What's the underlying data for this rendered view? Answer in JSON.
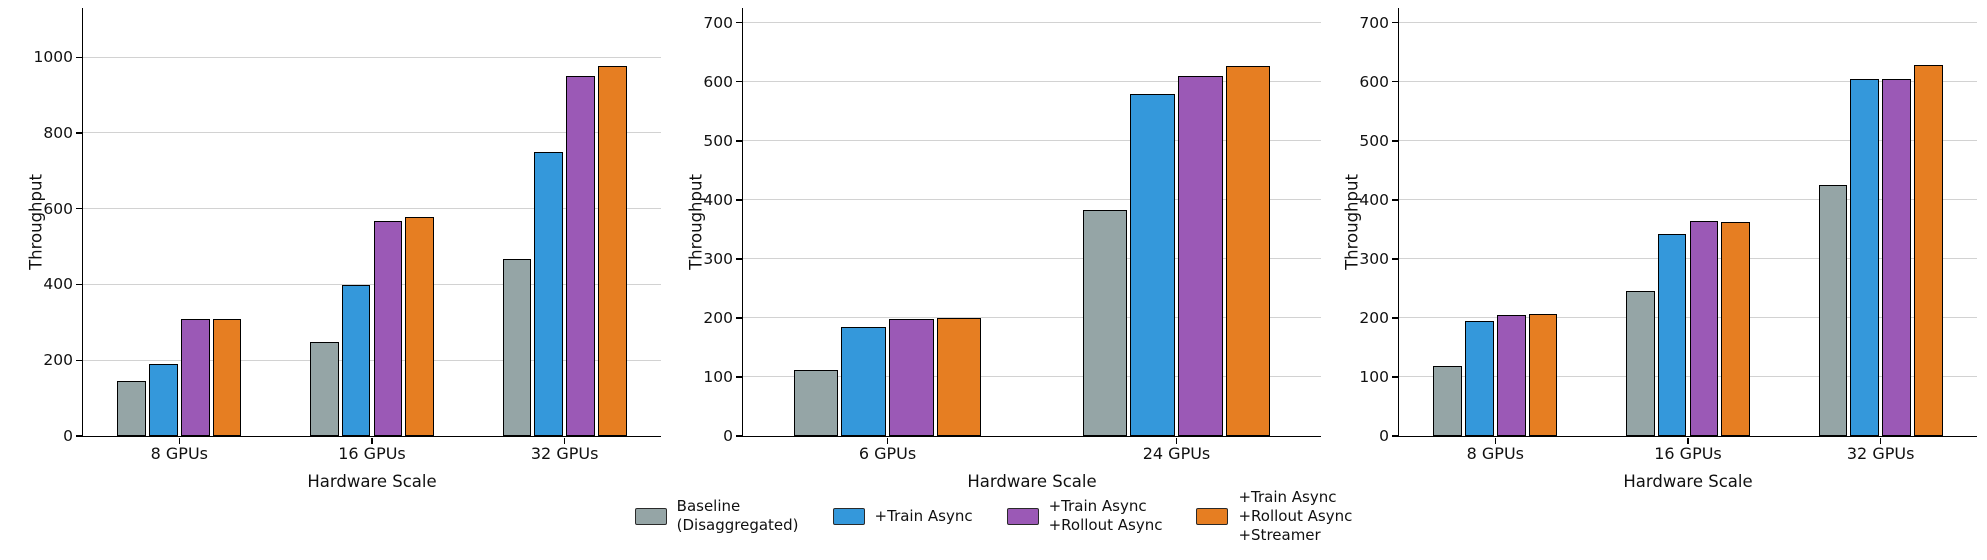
{
  "figure": {
    "background": "#ffffff",
    "axis_color": "#000000",
    "grid_color": "#d2d2d2",
    "bar_edge_color": "#000000"
  },
  "legend": {
    "position": "bottom-center",
    "items": [
      {
        "series": "Baseline (Disaggregated)",
        "lines": [
          "Baseline",
          "(Disaggregated)"
        ],
        "color": "#95a5a6"
      },
      {
        "series": "+Train Async",
        "lines": [
          "+Train Async"
        ],
        "color": "#3498db"
      },
      {
        "series": "+Train Async +Rollout Async",
        "lines": [
          "+Train Async",
          "+Rollout Async"
        ],
        "color": "#9b59b6"
      },
      {
        "series": "+Train Async +Rollout Async +Streamer",
        "lines": [
          "+Train Async",
          "+Rollout Async",
          "+Streamer"
        ],
        "color": "#e67e22"
      }
    ]
  },
  "chart_data": [
    {
      "type": "bar",
      "title": "",
      "xlabel": "Hardware Scale",
      "ylabel": "Throughput",
      "categories": [
        "8 GPUs",
        "16 GPUs",
        "32 GPUs"
      ],
      "yticks": [
        0,
        200,
        400,
        600,
        800,
        1000
      ],
      "ylim": [
        0,
        1130
      ],
      "grid": true,
      "legend_position": "bottom",
      "series": [
        {
          "name": "Baseline (Disaggregated)",
          "color": "#95a5a6",
          "values": [
            145,
            249,
            467
          ]
        },
        {
          "name": "+Train Async",
          "color": "#3498db",
          "values": [
            190,
            398,
            750
          ]
        },
        {
          "name": "+Train Async +Rollout Async",
          "color": "#9b59b6",
          "values": [
            309,
            568,
            950
          ]
        },
        {
          "name": "+Train Async +Rollout Async +Streamer",
          "color": "#e67e22",
          "values": [
            309,
            578,
            978
          ]
        }
      ]
    },
    {
      "type": "bar",
      "title": "",
      "xlabel": "Hardware Scale",
      "ylabel": "Throughput",
      "categories": [
        "6 GPUs",
        "24 GPUs"
      ],
      "yticks": [
        0,
        100,
        200,
        300,
        400,
        500,
        600,
        700
      ],
      "ylim": [
        0,
        725
      ],
      "grid": true,
      "legend_position": "bottom",
      "series": [
        {
          "name": "Baseline (Disaggregated)",
          "color": "#95a5a6",
          "values": [
            112,
            383
          ]
        },
        {
          "name": "+Train Async",
          "color": "#3498db",
          "values": [
            185,
            579
          ]
        },
        {
          "name": "+Train Async +Rollout Async",
          "color": "#9b59b6",
          "values": [
            198,
            609
          ]
        },
        {
          "name": "+Train Async +Rollout Async +Streamer",
          "color": "#e67e22",
          "values": [
            200,
            627
          ]
        }
      ]
    },
    {
      "type": "bar",
      "title": "",
      "xlabel": "Hardware Scale",
      "ylabel": "Throughput",
      "categories": [
        "8 GPUs",
        "16 GPUs",
        "32 GPUs"
      ],
      "yticks": [
        0,
        100,
        200,
        300,
        400,
        500,
        600,
        700
      ],
      "ylim": [
        0,
        725
      ],
      "grid": true,
      "legend_position": "bottom",
      "series": [
        {
          "name": "Baseline (Disaggregated)",
          "color": "#95a5a6",
          "values": [
            118,
            245,
            425
          ]
        },
        {
          "name": "+Train Async",
          "color": "#3498db",
          "values": [
            195,
            342,
            605
          ]
        },
        {
          "name": "+Train Async +Rollout Async",
          "color": "#9b59b6",
          "values": [
            205,
            364,
            605
          ]
        },
        {
          "name": "+Train Async +Rollout Async +Streamer",
          "color": "#e67e22",
          "values": [
            207,
            362,
            628
          ]
        }
      ]
    }
  ]
}
